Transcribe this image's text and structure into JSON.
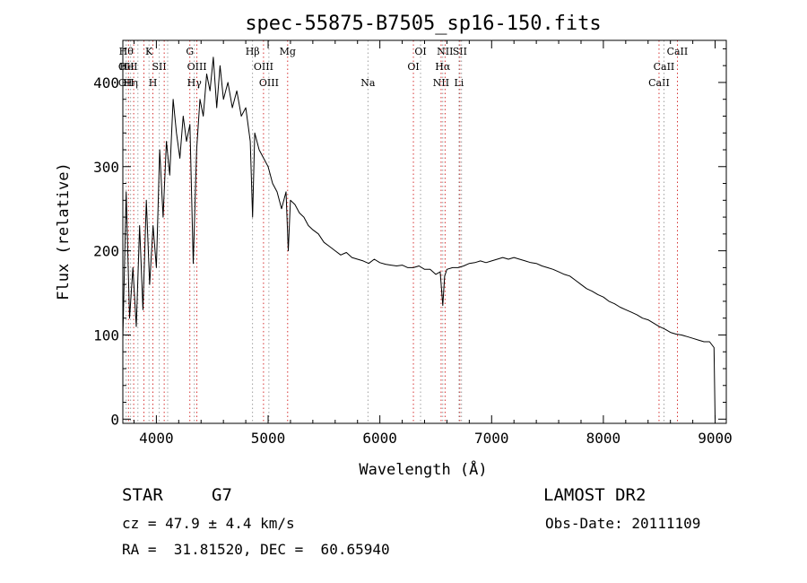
{
  "chart_data": {
    "type": "line",
    "title": "spec-55875-B7505_sp16-150.fits",
    "xlabel": "Wavelength (Å)",
    "ylabel": "Flux (relative)",
    "xlim": [
      3700,
      9100
    ],
    "ylim": [
      -5,
      450
    ],
    "xticks": [
      4000,
      5000,
      6000,
      7000,
      8000,
      9000
    ],
    "yticks": [
      0,
      100,
      200,
      300,
      400
    ],
    "series": [
      {
        "x": [
          3700,
          3730,
          3760,
          3790,
          3820,
          3850,
          3880,
          3910,
          3940,
          3970,
          4000,
          4030,
          4060,
          4090,
          4120,
          4150,
          4180,
          4210,
          4240,
          4270,
          4300,
          4330,
          4360,
          4390,
          4420,
          4450,
          4480,
          4510,
          4540,
          4570,
          4600,
          4640,
          4680,
          4720,
          4760,
          4800,
          4840,
          4861,
          4880,
          4920,
          4960,
          5000,
          5040,
          5080,
          5120,
          5160,
          5180,
          5200,
          5240,
          5280,
          5320,
          5360,
          5400,
          5450,
          5500,
          5550,
          5600,
          5650,
          5700,
          5750,
          5800,
          5850,
          5900,
          5950,
          6000,
          6050,
          6100,
          6150,
          6200,
          6250,
          6300,
          6350,
          6400,
          6450,
          6500,
          6540,
          6563,
          6580,
          6600,
          6650,
          6700,
          6750,
          6800,
          6850,
          6900,
          6950,
          7000,
          7050,
          7100,
          7150,
          7200,
          7250,
          7300,
          7350,
          7400,
          7450,
          7500,
          7550,
          7600,
          7650,
          7700,
          7750,
          7800,
          7850,
          7900,
          7950,
          8000,
          8050,
          8100,
          8150,
          8200,
          8250,
          8300,
          8350,
          8400,
          8450,
          8500,
          8550,
          8600,
          8650,
          8700,
          8750,
          8800,
          8850,
          8900,
          8950,
          8990,
          9000
        ],
        "y": [
          95,
          270,
          120,
          180,
          110,
          230,
          130,
          260,
          160,
          230,
          180,
          320,
          240,
          330,
          290,
          380,
          340,
          310,
          360,
          330,
          350,
          185,
          320,
          380,
          360,
          410,
          390,
          430,
          370,
          420,
          380,
          400,
          370,
          390,
          360,
          370,
          330,
          240,
          340,
          320,
          310,
          300,
          280,
          270,
          250,
          270,
          200,
          260,
          255,
          245,
          240,
          230,
          225,
          220,
          210,
          205,
          200,
          195,
          198,
          192,
          190,
          188,
          185,
          190,
          186,
          184,
          183,
          182,
          183,
          180,
          180,
          182,
          178,
          178,
          172,
          175,
          135,
          170,
          178,
          180,
          180,
          182,
          185,
          186,
          188,
          186,
          188,
          190,
          192,
          190,
          192,
          190,
          188,
          186,
          185,
          182,
          180,
          178,
          175,
          172,
          170,
          165,
          160,
          155,
          152,
          148,
          145,
          140,
          137,
          133,
          130,
          127,
          124,
          120,
          118,
          114,
          110,
          107,
          103,
          101,
          100,
          98,
          96,
          94,
          92,
          92,
          85,
          0
        ]
      }
    ],
    "line_marks": [
      {
        "x": 3730,
        "labels": [
          "Hθ",
          "OII",
          "OII"
        ],
        "rows": [
          0,
          1,
          2
        ]
      },
      {
        "x": 3750,
        "labels": [
          "HeI"
        ],
        "rows": [
          1
        ]
      },
      {
        "x": 3770,
        "labels": [
          "Hη"
        ],
        "rows": [
          2
        ]
      },
      {
        "x": 3797,
        "labels": [],
        "rows": []
      },
      {
        "x": 3835,
        "labels": [],
        "rows": []
      },
      {
        "x": 3889,
        "labels": [],
        "rows": []
      },
      {
        "x": 3934,
        "labels": [
          "K"
        ],
        "rows": [
          0
        ]
      },
      {
        "x": 3969,
        "labels": [
          "H"
        ],
        "rows": [
          2
        ]
      },
      {
        "x": 4026,
        "labels": [
          "SII"
        ],
        "rows": [
          1
        ]
      },
      {
        "x": 4070,
        "labels": [],
        "rows": []
      },
      {
        "x": 4101,
        "labels": [],
        "rows": []
      },
      {
        "x": 4300,
        "labels": [
          "G"
        ],
        "rows": [
          0
        ]
      },
      {
        "x": 4340,
        "labels": [
          "Hγ"
        ],
        "rows": [
          2
        ]
      },
      {
        "x": 4363,
        "labels": [
          "OIII"
        ],
        "rows": [
          1
        ]
      },
      {
        "x": 4861,
        "labels": [
          "Hβ"
        ],
        "rows": [
          0
        ]
      },
      {
        "x": 4959,
        "labels": [
          "OIII"
        ],
        "rows": [
          1
        ]
      },
      {
        "x": 5007,
        "labels": [
          "OIII"
        ],
        "rows": [
          2
        ]
      },
      {
        "x": 5175,
        "labels": [
          "Mg"
        ],
        "rows": [
          0
        ]
      },
      {
        "x": 5893,
        "labels": [
          "Na"
        ],
        "rows": [
          2
        ]
      },
      {
        "x": 6300,
        "labels": [
          "OI"
        ],
        "rows": [
          1
        ]
      },
      {
        "x": 6364,
        "labels": [
          "OI"
        ],
        "rows": [
          0
        ]
      },
      {
        "x": 6548,
        "labels": [
          "NII"
        ],
        "rows": [
          2
        ]
      },
      {
        "x": 6563,
        "labels": [
          "Hα"
        ],
        "rows": [
          1
        ]
      },
      {
        "x": 6583,
        "labels": [
          "NII"
        ],
        "rows": [
          0
        ]
      },
      {
        "x": 6708,
        "labels": [
          "Li"
        ],
        "rows": [
          2
        ]
      },
      {
        "x": 6716,
        "labels": [
          "SII"
        ],
        "rows": [
          0,
          1
        ]
      },
      {
        "x": 6731,
        "labels": [],
        "rows": []
      },
      {
        "x": 8498,
        "labels": [
          "CaII"
        ],
        "rows": [
          2
        ]
      },
      {
        "x": 8542,
        "labels": [
          "CaII"
        ],
        "rows": [
          1
        ]
      },
      {
        "x": 8662,
        "labels": [
          "CaII"
        ],
        "rows": [
          0
        ]
      }
    ]
  },
  "info": {
    "class": "STAR",
    "subclass": "G7",
    "survey": "LAMOST DR2",
    "cz": "cz = 47.9 ± 4.4 km/s",
    "obs_date": "Obs-Date: 20111109",
    "radec": "RA =  31.81520, DEC =  60.65940"
  },
  "colors": {
    "marker_red": "#cc0000",
    "marker_gray": "#888888",
    "line": "#000000"
  }
}
